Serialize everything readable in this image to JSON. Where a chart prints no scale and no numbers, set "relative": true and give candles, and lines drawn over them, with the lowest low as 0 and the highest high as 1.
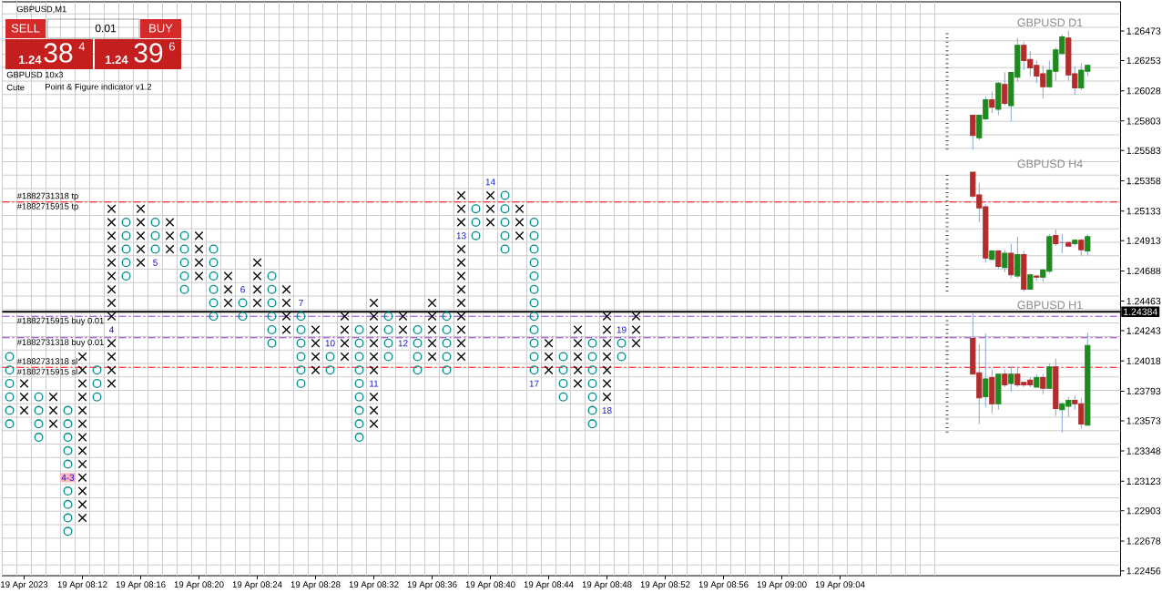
{
  "chart_data": [
    {
      "type": "scatter",
      "title": "GBPUSD,M1",
      "subtitle": "GBPUSD 10x3",
      "xlim": [
        "2023-04-19T08:06:30",
        "2023-04-19T09:23:15"
      ],
      "xticks": [
        {
          "value": "2023-04-19T08:08",
          "label": "19 Apr 2023"
        },
        {
          "value": "2023-04-19T08:12",
          "label": "19 Apr 08:12"
        },
        {
          "value": "2023-04-19T08:16",
          "label": "19 Apr 08:16"
        },
        {
          "value": "2023-04-19T08:20",
          "label": "19 Apr 08:20"
        },
        {
          "value": "2023-04-19T08:24",
          "label": "19 Apr 08:24"
        },
        {
          "value": "2023-04-19T08:28",
          "label": "19 Apr 08:28"
        },
        {
          "value": "2023-04-19T08:32",
          "label": "19 Apr 08:32"
        },
        {
          "value": "2023-04-19T08:36",
          "label": "19 Apr 08:36"
        },
        {
          "value": "2023-04-19T08:40",
          "label": "19 Apr 08:40"
        },
        {
          "value": "2023-04-19T08:44",
          "label": "19 Apr 08:44"
        },
        {
          "value": "2023-04-19T08:48",
          "label": "19 Apr 08:48"
        },
        {
          "value": "2023-04-19T08:52",
          "label": "19 Apr 08:52"
        },
        {
          "value": "2023-04-19T08:56",
          "label": "19 Apr 08:56"
        },
        {
          "value": "2023-04-19T09:00",
          "label": "19 Apr 09:00"
        },
        {
          "value": "2023-04-19T09:04",
          "label": "19 Apr 09:04"
        }
      ],
      "ylim": [
        1.2242,
        1.2669
      ],
      "yticks": [
        1.22456,
        1.22678,
        1.22903,
        1.23123,
        1.23348,
        1.23573,
        1.23793,
        1.24018,
        1.24243,
        1.24463,
        1.24688,
        1.24913,
        1.25133,
        1.25358,
        1.25583,
        1.25803,
        1.26028,
        1.26253,
        1.26473
      ],
      "grid": true,
      "series": [
        {
          "color": "#000000",
          "marker": "cross",
          "x": [
            "2023-04-19T08:08",
            "2023-04-19T08:08",
            "2023-04-19T08:08",
            "2023-04-19T08:10",
            "2023-04-19T08:10",
            "2023-04-19T08:10",
            "2023-04-19T08:12",
            "2023-04-19T08:12",
            "2023-04-19T08:12",
            "2023-04-19T08:12",
            "2023-04-19T08:12",
            "2023-04-19T08:12",
            "2023-04-19T08:12",
            "2023-04-19T08:12",
            "2023-04-19T08:12",
            "2023-04-19T08:12",
            "2023-04-19T08:12",
            "2023-04-19T08:12",
            "2023-04-19T08:12",
            "2023-04-19T08:14",
            "2023-04-19T08:14",
            "2023-04-19T08:14",
            "2023-04-19T08:14",
            "2023-04-19T08:14",
            "2023-04-19T08:14",
            "2023-04-19T08:14",
            "2023-04-19T08:14",
            "2023-04-19T08:14",
            "2023-04-19T08:14",
            "2023-04-19T08:14",
            "2023-04-19T08:14",
            "2023-04-19T08:14",
            "2023-04-19T08:16",
            "2023-04-19T08:16",
            "2023-04-19T08:16",
            "2023-04-19T08:16",
            "2023-04-19T08:16",
            "2023-04-19T08:18",
            "2023-04-19T08:18",
            "2023-04-19T08:18",
            "2023-04-19T08:20",
            "2023-04-19T08:20",
            "2023-04-19T08:20",
            "2023-04-19T08:20",
            "2023-04-19T08:22",
            "2023-04-19T08:22",
            "2023-04-19T08:22",
            "2023-04-19T08:24",
            "2023-04-19T08:24",
            "2023-04-19T08:24",
            "2023-04-19T08:24",
            "2023-04-19T08:26",
            "2023-04-19T08:26",
            "2023-04-19T08:26",
            "2023-04-19T08:26",
            "2023-04-19T08:28",
            "2023-04-19T08:28",
            "2023-04-19T08:28",
            "2023-04-19T08:28",
            "2023-04-19T08:30",
            "2023-04-19T08:30",
            "2023-04-19T08:30",
            "2023-04-19T08:30",
            "2023-04-19T08:32",
            "2023-04-19T08:32",
            "2023-04-19T08:32",
            "2023-04-19T08:32",
            "2023-04-19T08:32",
            "2023-04-19T08:32",
            "2023-04-19T08:32",
            "2023-04-19T08:32",
            "2023-04-19T08:32",
            "2023-04-19T08:34",
            "2023-04-19T08:34",
            "2023-04-19T08:36",
            "2023-04-19T08:36",
            "2023-04-19T08:36",
            "2023-04-19T08:36",
            "2023-04-19T08:36",
            "2023-04-19T08:38",
            "2023-04-19T08:38",
            "2023-04-19T08:38",
            "2023-04-19T08:38",
            "2023-04-19T08:38",
            "2023-04-19T08:38",
            "2023-04-19T08:38",
            "2023-04-19T08:38",
            "2023-04-19T08:38",
            "2023-04-19T08:38",
            "2023-04-19T08:38",
            "2023-04-19T08:38",
            "2023-04-19T08:40",
            "2023-04-19T08:40",
            "2023-04-19T08:40",
            "2023-04-19T08:42",
            "2023-04-19T08:42",
            "2023-04-19T08:42",
            "2023-04-19T08:44",
            "2023-04-19T08:44",
            "2023-04-19T08:44",
            "2023-04-19T08:46",
            "2023-04-19T08:46",
            "2023-04-19T08:46",
            "2023-04-19T08:46",
            "2023-04-19T08:46",
            "2023-04-19T08:48",
            "2023-04-19T08:48",
            "2023-04-19T08:48",
            "2023-04-19T08:48",
            "2023-04-19T08:48",
            "2023-04-19T08:48",
            "2023-04-19T08:48",
            "2023-04-19T08:50",
            "2023-04-19T08:50",
            "2023-04-19T08:50"
          ],
          "values": [
            1.2385,
            1.2375,
            1.2365,
            1.2375,
            1.2365,
            1.2355,
            1.2405,
            1.2395,
            1.2385,
            1.2375,
            1.2365,
            1.2355,
            1.2345,
            1.2335,
            1.2325,
            1.2315,
            1.2305,
            1.2295,
            1.2285,
            1.2515,
            1.2505,
            1.2495,
            1.2485,
            1.2475,
            1.2465,
            1.2455,
            1.2445,
            1.2435,
            1.2415,
            1.2405,
            1.2395,
            1.2385,
            1.2515,
            1.2505,
            1.2495,
            1.2485,
            1.2475,
            1.2505,
            1.2495,
            1.2485,
            1.2495,
            1.2485,
            1.2475,
            1.2465,
            1.2465,
            1.2455,
            1.2445,
            1.2475,
            1.2465,
            1.2455,
            1.2445,
            1.2455,
            1.2445,
            1.2435,
            1.2425,
            1.2425,
            1.2415,
            1.2405,
            1.2395,
            1.2435,
            1.2425,
            1.2415,
            1.2405,
            1.2445,
            1.2435,
            1.2425,
            1.2415,
            1.2405,
            1.2395,
            1.2375,
            1.2365,
            1.2355,
            1.2435,
            1.2425,
            1.2445,
            1.2435,
            1.2425,
            1.2415,
            1.2405,
            1.2525,
            1.2515,
            1.2505,
            1.2485,
            1.2475,
            1.2465,
            1.2455,
            1.2445,
            1.2435,
            1.2425,
            1.2415,
            1.2405,
            1.2525,
            1.2515,
            1.2505,
            1.2515,
            1.2505,
            1.2495,
            1.2415,
            1.2405,
            1.2395,
            1.2425,
            1.2415,
            1.2405,
            1.2395,
            1.2385,
            1.2435,
            1.2425,
            1.2415,
            1.2405,
            1.2395,
            1.2385,
            1.2375,
            1.2435,
            1.2425,
            1.2415
          ]
        },
        {
          "color": "#008b8b",
          "marker": "circle",
          "x": [
            "2023-04-19T08:07",
            "2023-04-19T08:07",
            "2023-04-19T08:07",
            "2023-04-19T08:07",
            "2023-04-19T08:07",
            "2023-04-19T08:07",
            "2023-04-19T08:09",
            "2023-04-19T08:09",
            "2023-04-19T08:09",
            "2023-04-19T08:09",
            "2023-04-19T08:11",
            "2023-04-19T08:11",
            "2023-04-19T08:11",
            "2023-04-19T08:11",
            "2023-04-19T08:11",
            "2023-04-19T08:11",
            "2023-04-19T08:11",
            "2023-04-19T08:11",
            "2023-04-19T08:11",
            "2023-04-19T08:13",
            "2023-04-19T08:13",
            "2023-04-19T08:13",
            "2023-04-19T08:15",
            "2023-04-19T08:15",
            "2023-04-19T08:15",
            "2023-04-19T08:15",
            "2023-04-19T08:15",
            "2023-04-19T08:17",
            "2023-04-19T08:17",
            "2023-04-19T08:17",
            "2023-04-19T08:19",
            "2023-04-19T08:19",
            "2023-04-19T08:19",
            "2023-04-19T08:19",
            "2023-04-19T08:19",
            "2023-04-19T08:21",
            "2023-04-19T08:21",
            "2023-04-19T08:21",
            "2023-04-19T08:21",
            "2023-04-19T08:21",
            "2023-04-19T08:21",
            "2023-04-19T08:23",
            "2023-04-19T08:23",
            "2023-04-19T08:25",
            "2023-04-19T08:25",
            "2023-04-19T08:25",
            "2023-04-19T08:25",
            "2023-04-19T08:25",
            "2023-04-19T08:25",
            "2023-04-19T08:27",
            "2023-04-19T08:27",
            "2023-04-19T08:27",
            "2023-04-19T08:27",
            "2023-04-19T08:27",
            "2023-04-19T08:27",
            "2023-04-19T08:29",
            "2023-04-19T08:29",
            "2023-04-19T08:31",
            "2023-04-19T08:31",
            "2023-04-19T08:31",
            "2023-04-19T08:31",
            "2023-04-19T08:31",
            "2023-04-19T08:31",
            "2023-04-19T08:31",
            "2023-04-19T08:31",
            "2023-04-19T08:31",
            "2023-04-19T08:33",
            "2023-04-19T08:33",
            "2023-04-19T08:33",
            "2023-04-19T08:33",
            "2023-04-19T08:35",
            "2023-04-19T08:35",
            "2023-04-19T08:35",
            "2023-04-19T08:35",
            "2023-04-19T08:37",
            "2023-04-19T08:37",
            "2023-04-19T08:37",
            "2023-04-19T08:37",
            "2023-04-19T08:37",
            "2023-04-19T08:39",
            "2023-04-19T08:39",
            "2023-04-19T08:39",
            "2023-04-19T08:41",
            "2023-04-19T08:41",
            "2023-04-19T08:41",
            "2023-04-19T08:41",
            "2023-04-19T08:41",
            "2023-04-19T08:43",
            "2023-04-19T08:43",
            "2023-04-19T08:43",
            "2023-04-19T08:43",
            "2023-04-19T08:43",
            "2023-04-19T08:43",
            "2023-04-19T08:43",
            "2023-04-19T08:43",
            "2023-04-19T08:43",
            "2023-04-19T08:43",
            "2023-04-19T08:43",
            "2023-04-19T08:43",
            "2023-04-19T08:45",
            "2023-04-19T08:45",
            "2023-04-19T08:45",
            "2023-04-19T08:45",
            "2023-04-19T08:47",
            "2023-04-19T08:47",
            "2023-04-19T08:47",
            "2023-04-19T08:47",
            "2023-04-19T08:47",
            "2023-04-19T08:47",
            "2023-04-19T08:47",
            "2023-04-19T08:49",
            "2023-04-19T08:49"
          ],
          "values": [
            1.2405,
            1.2395,
            1.2385,
            1.2375,
            1.2365,
            1.2355,
            1.2375,
            1.2365,
            1.2355,
            1.2345,
            1.2365,
            1.2355,
            1.2345,
            1.2335,
            1.2325,
            1.2305,
            1.2295,
            1.2285,
            1.2275,
            1.2395,
            1.2385,
            1.2375,
            1.2505,
            1.2495,
            1.2485,
            1.2475,
            1.2465,
            1.2505,
            1.2495,
            1.2485,
            1.2495,
            1.2485,
            1.2475,
            1.2465,
            1.2455,
            1.2485,
            1.2475,
            1.2465,
            1.2455,
            1.2445,
            1.2435,
            1.2445,
            1.2435,
            1.2465,
            1.2455,
            1.2445,
            1.2435,
            1.2425,
            1.2415,
            1.2435,
            1.2425,
            1.2415,
            1.2405,
            1.2395,
            1.2385,
            1.2405,
            1.2395,
            1.2425,
            1.2415,
            1.2405,
            1.2395,
            1.2385,
            1.2375,
            1.2365,
            1.2355,
            1.2345,
            1.2435,
            1.2425,
            1.2415,
            1.2405,
            1.2425,
            1.2415,
            1.2405,
            1.2395,
            1.2435,
            1.2425,
            1.2415,
            1.2405,
            1.2395,
            1.2515,
            1.2505,
            1.2495,
            1.2525,
            1.2515,
            1.2505,
            1.2495,
            1.2485,
            1.2505,
            1.2495,
            1.2485,
            1.2475,
            1.2465,
            1.2455,
            1.2445,
            1.2435,
            1.2425,
            1.2415,
            1.2405,
            1.2395,
            1.2405,
            1.2395,
            1.2385,
            1.2375,
            1.2415,
            1.2405,
            1.2395,
            1.2385,
            1.2375,
            1.2365,
            1.2355,
            1.2415,
            1.2405
          ]
        }
      ],
      "ref_lines": [
        {
          "axis": "y",
          "value": 1.252,
          "label": "#1882715915 tp",
          "color": "#ff0000",
          "line_style": "dashdot"
        },
        {
          "axis": "y",
          "value": 1.2435,
          "label": "#1882715915 buy 0.01",
          "color": "#9932cc",
          "line_style": "dashdot"
        },
        {
          "axis": "y",
          "value": 1.2419,
          "label": "#1882731318 buy 0.01",
          "color": "#9932cc",
          "line_style": "dashdot"
        },
        {
          "axis": "y",
          "value": 1.2397,
          "label": "#1882715915 sl",
          "color": "#ff0000",
          "line_style": "dashdot"
        },
        {
          "axis": "y",
          "value": 1.24384,
          "label": "1.24384",
          "color": "#000000",
          "line_style": "solid"
        }
      ],
      "annotations": [
        "SELL",
        "0.01",
        "BUY",
        "1.24",
        "38",
        "4",
        "1.24",
        "39",
        "6",
        "Cute",
        "Point & Figure indicator v1.2",
        "#1882731318 tp",
        "#1882731318 sl",
        "4-3",
        "4",
        "5",
        "6",
        "7",
        "10",
        "11",
        "12",
        "13",
        "14",
        "17",
        "18",
        "19"
      ]
    },
    {
      "type": "candlestick",
      "title": "GBPUSD D1",
      "relative": true,
      "categories": [
        null,
        null,
        null,
        null,
        null,
        null,
        null,
        null,
        null,
        null,
        null,
        null,
        null,
        null,
        null,
        null,
        null,
        null,
        null
      ],
      "ohlc": [
        [
          0.29,
          0.29,
          0,
          0.12
        ],
        [
          0.1,
          0.29,
          0.08,
          0.29
        ],
        [
          0.26,
          0.45,
          0.25,
          0.42
        ],
        [
          0.42,
          0.49,
          0.31,
          0.36
        ],
        [
          0.34,
          0.57,
          0.29,
          0.56
        ],
        [
          0.55,
          0.65,
          0.37,
          0.39
        ],
        [
          0.37,
          0.65,
          0.24,
          0.65
        ],
        [
          0.61,
          0.94,
          0.57,
          0.88
        ],
        [
          0.88,
          0.91,
          0.67,
          0.75
        ],
        [
          0.76,
          0.83,
          0.62,
          0.69
        ],
        [
          0.71,
          0.75,
          0.56,
          0.62
        ],
        [
          0.64,
          0.71,
          0.43,
          0.53
        ],
        [
          0.53,
          0.75,
          0.52,
          0.67
        ],
        [
          0.66,
          0.86,
          0.58,
          0.84
        ],
        [
          0.81,
          0.97,
          0.8,
          0.95
        ],
        [
          0.94,
          1,
          0.58,
          0.63
        ],
        [
          0.64,
          0.7,
          0.46,
          0.52
        ],
        [
          0.52,
          0.73,
          0.5,
          0.67
        ],
        [
          0.66,
          0.72,
          0.62,
          0.71
        ]
      ],
      "colors": [
        "#b22c2c",
        "#1e8a1e",
        "#1e8a1e",
        "#b22c2c",
        "#1e8a1e",
        "#b22c2c",
        "#1e8a1e",
        "#1e8a1e",
        "#b22c2c",
        "#b22c2c",
        "#b22c2c",
        "#b22c2c",
        "#1e8a1e",
        "#1e8a1e",
        "#1e8a1e",
        "#b22c2c",
        "#b22c2c",
        "#1e8a1e",
        "#1e8a1e"
      ]
    },
    {
      "type": "candlestick",
      "title": "GBPUSD H4",
      "relative": true,
      "categories": [
        null,
        null,
        null,
        null,
        null,
        null,
        null,
        null,
        null,
        null,
        null,
        null,
        null,
        null,
        null,
        null,
        null,
        null,
        null
      ],
      "ohlc": [
        [
          1,
          1,
          0.78,
          0.8
        ],
        [
          0.81,
          0.91,
          0.58,
          0.7
        ],
        [
          0.71,
          0.73,
          0.24,
          0.28
        ],
        [
          0.27,
          0.35,
          0.26,
          0.34
        ],
        [
          0.34,
          0.34,
          0.19,
          0.21
        ],
        [
          0.2,
          0.35,
          0.16,
          0.32
        ],
        [
          0.32,
          0.4,
          0.11,
          0.14
        ],
        [
          0.13,
          0.46,
          0.11,
          0.31
        ],
        [
          0.31,
          0.34,
          0,
          0.02
        ],
        [
          0.02,
          0.15,
          0.02,
          0.14
        ],
        [
          0.13,
          0.14,
          0.09,
          0.12
        ],
        [
          0.12,
          0.19,
          0.08,
          0.18
        ],
        [
          0.17,
          0.48,
          0.15,
          0.46
        ],
        [
          0.47,
          0.52,
          0.38,
          0.4
        ],
        [
          0.41,
          0.48,
          0.32,
          0.41
        ],
        [
          0.41,
          0.42,
          0.38,
          0.38
        ],
        [
          0.4,
          0.44,
          0.38,
          0.43
        ],
        [
          0.43,
          0.44,
          0.3,
          0.35
        ],
        [
          0.34,
          0.48,
          0.3,
          0.46
        ]
      ],
      "colors": [
        "#b22c2c",
        "#b22c2c",
        "#b22c2c",
        "#1e8a1e",
        "#b22c2c",
        "#1e8a1e",
        "#b22c2c",
        "#1e8a1e",
        "#b22c2c",
        "#1e8a1e",
        "#b22c2c",
        "#1e8a1e",
        "#1e8a1e",
        "#b22c2c",
        "#7f7f7f",
        "#b22c2c",
        "#1e8a1e",
        "#b22c2c",
        "#1e8a1e"
      ]
    },
    {
      "type": "candlestick",
      "title": "GBPUSD H1",
      "relative": true,
      "categories": [
        null,
        null,
        null,
        null,
        null,
        null,
        null,
        null,
        null,
        null,
        null,
        null,
        null,
        null,
        null,
        null,
        null,
        null,
        null
      ],
      "ohlc": [
        [
          0.79,
          1,
          0.49,
          0.49
        ],
        [
          0.5,
          0.74,
          0.07,
          0.29
        ],
        [
          0.3,
          0.83,
          0.21,
          0.45
        ],
        [
          0.46,
          0.53,
          0.16,
          0.24
        ],
        [
          0.24,
          0.49,
          0.19,
          0.49
        ],
        [
          0.49,
          0.53,
          0.38,
          0.4
        ],
        [
          0.41,
          0.55,
          0.34,
          0.49
        ],
        [
          0.49,
          0.55,
          0.38,
          0.4
        ],
        [
          0.42,
          0.42,
          0.38,
          0.4
        ],
        [
          0.44,
          0.46,
          0.38,
          0.4
        ],
        [
          0.38,
          0.49,
          0.38,
          0.46
        ],
        [
          0.46,
          0.49,
          0.32,
          0.37
        ],
        [
          0.37,
          0.58,
          0.37,
          0.55
        ],
        [
          0.55,
          0.62,
          0.14,
          0.2
        ],
        [
          0.19,
          0.25,
          0,
          0.24
        ],
        [
          0.22,
          0.3,
          0.13,
          0.27
        ],
        [
          0.27,
          0.31,
          0.19,
          0.24
        ],
        [
          0.24,
          0.29,
          0.03,
          0.07
        ],
        [
          0.06,
          0.84,
          0.06,
          0.73
        ]
      ],
      "colors": [
        "#b22c2c",
        "#b22c2c",
        "#1e8a1e",
        "#b22c2c",
        "#1e8a1e",
        "#b22c2c",
        "#1e8a1e",
        "#b22c2c",
        "#b22c2c",
        "#b22c2c",
        "#1e8a1e",
        "#b22c2c",
        "#1e8a1e",
        "#b22c2c",
        "#1e8a1e",
        "#1e8a1e",
        "#b22c2c",
        "#b22c2c",
        "#1e8a1e"
      ]
    }
  ]
}
